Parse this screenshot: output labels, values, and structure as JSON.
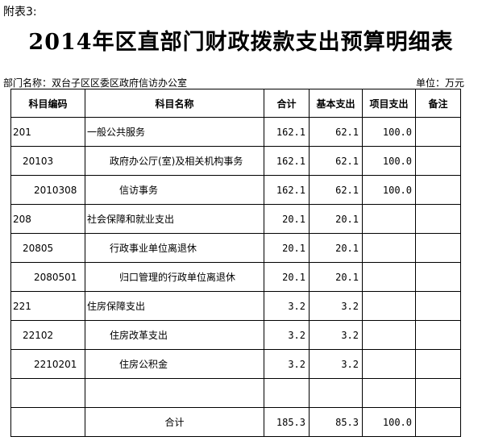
{
  "header": {
    "appendix": "附表3:",
    "title": "2014年区直部门财政拨款支出预算明细表",
    "department": "部门名称：双台子区区委区政府信访办公室",
    "unit": "单位：万元"
  },
  "table": {
    "columns": [
      "科目编码",
      "科目名称",
      "合计",
      "基本支出",
      "项目支出",
      "备注"
    ],
    "rows": [
      {
        "code": "201",
        "name": "一般公共服务",
        "total": "162.1",
        "basic": "62.1",
        "project": "100.0",
        "note": "",
        "level": 0
      },
      {
        "code": "20103",
        "name": "政府办公厅(室)及相关机构事务",
        "total": "162.1",
        "basic": "62.1",
        "project": "100.0",
        "note": "",
        "level": 1
      },
      {
        "code": "2010308",
        "name": "信访事务",
        "total": "162.1",
        "basic": "62.1",
        "project": "100.0",
        "note": "",
        "level": 2
      },
      {
        "code": "208",
        "name": "社会保障和就业支出",
        "total": "20.1",
        "basic": "20.1",
        "project": "",
        "note": "",
        "level": 0
      },
      {
        "code": "20805",
        "name": "行政事业单位离退休",
        "total": "20.1",
        "basic": "20.1",
        "project": "",
        "note": "",
        "level": 1
      },
      {
        "code": "2080501",
        "name": "归口管理的行政单位离退休",
        "total": "20.1",
        "basic": "20.1",
        "project": "",
        "note": "",
        "level": 2
      },
      {
        "code": "221",
        "name": "住房保障支出",
        "total": "3.2",
        "basic": "3.2",
        "project": "",
        "note": "",
        "level": 0
      },
      {
        "code": "22102",
        "name": "住房改革支出",
        "total": "3.2",
        "basic": "3.2",
        "project": "",
        "note": "",
        "level": 1
      },
      {
        "code": "2210201",
        "name": "住房公积金",
        "total": "3.2",
        "basic": "3.2",
        "project": "",
        "note": "",
        "level": 2
      },
      {
        "code": "",
        "name": "",
        "total": "",
        "basic": "",
        "project": "",
        "note": "",
        "level": 0
      }
    ],
    "total_row": {
      "label": "合计",
      "total": "185.3",
      "basic": "85.3",
      "project": "100.0",
      "note": ""
    }
  }
}
